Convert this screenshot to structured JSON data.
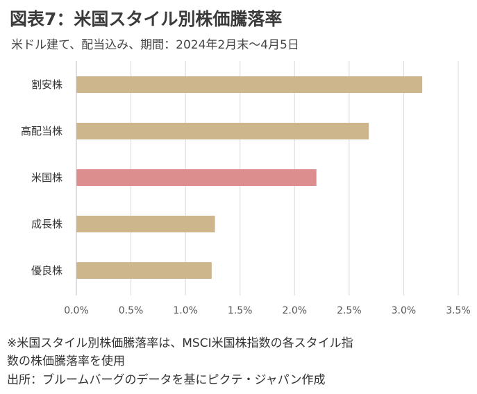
{
  "title": "図表7：米国スタイル別株価騰落率",
  "subtitle": "米ドル建て、配当込み、期間：2024年2月末～4月5日",
  "chart_data": {
    "type": "bar",
    "orientation": "horizontal",
    "categories": [
      "割安株",
      "高配当株",
      "米国株",
      "成長株",
      "優良株"
    ],
    "values": [
      3.17,
      2.68,
      2.2,
      1.27,
      1.24
    ],
    "unit": "%",
    "xlim": [
      0,
      3.5
    ],
    "ticks": [
      "0.0%",
      "0.5%",
      "1.0%",
      "1.5%",
      "2.0%",
      "2.5%",
      "3.0%",
      "3.5%"
    ],
    "tick_values": [
      0,
      0.5,
      1.0,
      1.5,
      2.0,
      2.5,
      3.0,
      3.5
    ],
    "grid": "vertical",
    "colors": {
      "default": "#cdb68c",
      "highlight": "#dc8e8e",
      "highlight_category": "米国株",
      "grid": "#d9d9d9",
      "axis": "#bfbfbf"
    }
  },
  "notes": [
    "※米国スタイル別株価騰落率は、MSCI米国株指数の各スタイル指",
    "数の株価騰落率を使用",
    "出所：ブルームバーグのデータを基にピクテ・ジャパン作成"
  ]
}
